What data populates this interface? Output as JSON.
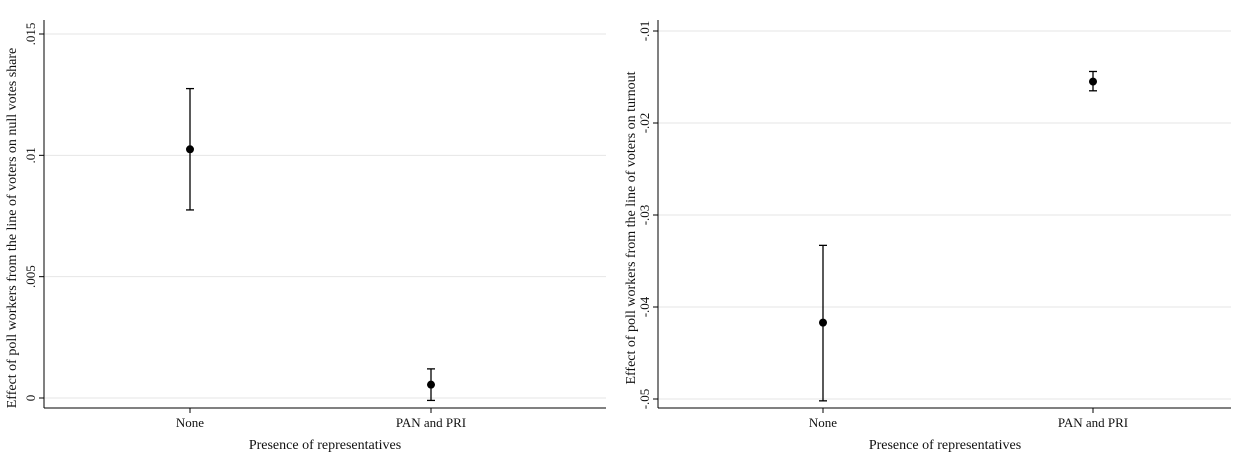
{
  "chart_data": [
    {
      "type": "scatter",
      "title": "",
      "xlabel": "Presence of representatives",
      "ylabel": "Effect of poll workers from the line of voters on null votes share",
      "categories": [
        "None",
        "PAN and PRI"
      ],
      "ylim": [
        0,
        0.015
      ],
      "yticks": [
        0,
        0.005,
        0.01,
        0.015
      ],
      "ytick_labels": [
        "0",
        ".005",
        ".01",
        ".015"
      ],
      "grid": true,
      "series": [
        {
          "estimates": [
            0.01025,
            0.00055
          ],
          "ci_lower": [
            0.00775,
            -0.0001
          ],
          "ci_upper": [
            0.01275,
            0.0012
          ]
        }
      ]
    },
    {
      "type": "scatter",
      "title": "",
      "xlabel": "Presence of representatives",
      "ylabel": "Effect of poll workers from the line of voters on turnout",
      "categories": [
        "None",
        "PAN and PRI"
      ],
      "ylim": [
        -0.05,
        -0.01
      ],
      "yticks": [
        -0.05,
        -0.04,
        -0.03,
        -0.02,
        -0.01
      ],
      "ytick_labels": [
        "-.05",
        "-.04",
        "-.03",
        "-.02",
        "-.01"
      ],
      "grid": true,
      "series": [
        {
          "estimates": [
            -0.0417,
            -0.0155
          ],
          "ci_lower": [
            -0.0502,
            -0.0165
          ],
          "ci_upper": [
            -0.0333,
            -0.0144
          ]
        }
      ]
    }
  ]
}
